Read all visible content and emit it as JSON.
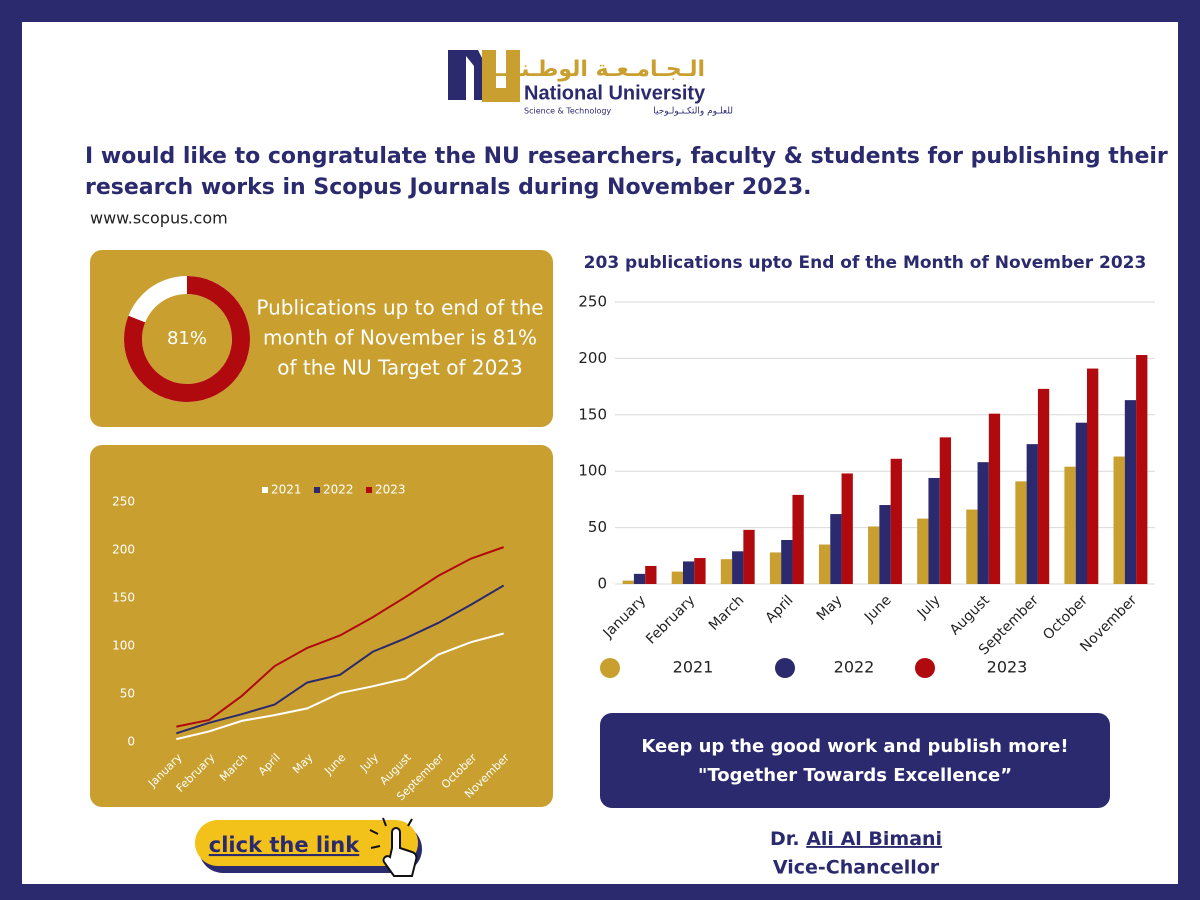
{
  "header": {
    "logo_arabic": "الـجـامـعـة الوطـنـيـة",
    "logo_name": "National University",
    "logo_sub": "Science & Technology",
    "logo_sub_arabic": "للعلـوم والتكـنـولـوجيا"
  },
  "message": [
    "I would like to congratulate the NU researchers, faculty & students for publishing their",
    "research works in Scopus Journals during November 2023."
  ],
  "website": "www.scopus.com",
  "chart_data": [
    {
      "type": "donut",
      "values": [
        81
      ],
      "value_labels": [
        "81%"
      ],
      "ylim": [
        0,
        100
      ],
      "color": "#b0090e",
      "annotation": [
        "Publications up to end of the",
        "month of November is 81%",
        "of the NU Target of 2023"
      ]
    },
    {
      "type": "line",
      "categories": [
        "January",
        "February",
        "March",
        "April",
        "May",
        "June",
        "July",
        "August",
        "September",
        "October",
        "November"
      ],
      "series": [
        {
          "name": "2021",
          "color": "#ffffff",
          "values": [
            3,
            11,
            22,
            28,
            35,
            51,
            58,
            66,
            91,
            104,
            113
          ]
        },
        {
          "name": "2022",
          "color": "#2b2a6e",
          "values": [
            9,
            20,
            29,
            39,
            62,
            70,
            94,
            108,
            124,
            143,
            163
          ]
        },
        {
          "name": "2023",
          "color": "#b0090e",
          "values": [
            16,
            23,
            48,
            79,
            98,
            111,
            130,
            151,
            173,
            191,
            203
          ]
        }
      ],
      "ylim": [
        0,
        250
      ],
      "yticks": [
        0,
        50,
        100,
        150,
        200,
        250
      ],
      "grid": false,
      "legend": "top"
    },
    {
      "type": "bar",
      "title": "203 publications upto End of the Month of November 2023",
      "categories": [
        "January",
        "February",
        "March",
        "April",
        "May",
        "June",
        "July",
        "August",
        "September",
        "October",
        "November"
      ],
      "series": [
        {
          "name": "2021",
          "color": "#c9a030",
          "values": [
            3,
            11,
            22,
            28,
            35,
            51,
            58,
            66,
            91,
            104,
            113
          ]
        },
        {
          "name": "2022",
          "color": "#2b2a6e",
          "values": [
            9,
            20,
            29,
            39,
            62,
            70,
            94,
            108,
            124,
            143,
            163
          ]
        },
        {
          "name": "2023",
          "color": "#b0090e",
          "values": [
            16,
            23,
            48,
            79,
            98,
            111,
            130,
            151,
            173,
            191,
            203
          ]
        }
      ],
      "ylim": [
        0,
        250
      ],
      "yticks": [
        0,
        50,
        100,
        150,
        200,
        250
      ],
      "grid": true,
      "legend": "bottom"
    }
  ],
  "banner": [
    "Keep up the good work and publish more!",
    "\"Together Towards Excellence”"
  ],
  "button": "click the link",
  "signature": {
    "prefix": "Dr.",
    "name": "Ali Al Bimani",
    "role": "Vice-Chancellor"
  }
}
